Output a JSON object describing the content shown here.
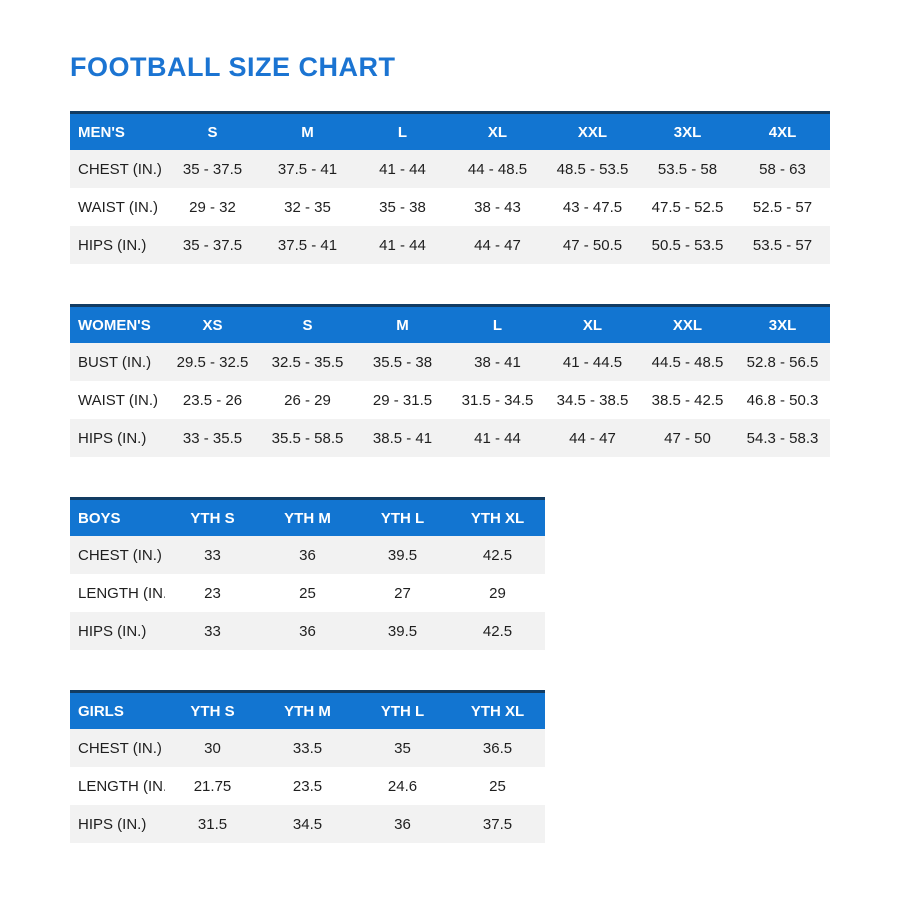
{
  "page": {
    "title": "FOOTBALL SIZE CHART"
  },
  "colors": {
    "title_blue": "#1b74d2",
    "accent_blue": "#1275d1",
    "header_top_border": "#123c63",
    "row_alt": "#f2f2f2",
    "text": "#1f1f1f"
  },
  "tables": [
    {
      "name": "mens",
      "size": "large",
      "header": [
        "MEN'S",
        "S",
        "M",
        "L",
        "XL",
        "XXL",
        "3XL",
        "4XL"
      ],
      "rows": [
        [
          "CHEST (IN.)",
          "35 - 37.5",
          "37.5 - 41",
          "41 - 44",
          "44 - 48.5",
          "48.5 - 53.5",
          "53.5 - 58",
          "58 - 63"
        ],
        [
          "WAIST (IN.)",
          "29 - 32",
          "32 - 35",
          "35 - 38",
          "38 - 43",
          "43 - 47.5",
          "47.5 - 52.5",
          "52.5 - 57"
        ],
        [
          "HIPS (IN.)",
          "35 - 37.5",
          "37.5 - 41",
          "41 - 44",
          "44 - 47",
          "47 - 50.5",
          "50.5 - 53.5",
          "53.5 - 57"
        ]
      ]
    },
    {
      "name": "womens",
      "size": "large",
      "header": [
        "WOMEN'S",
        "XS",
        "S",
        "M",
        "L",
        "XL",
        "XXL",
        "3XL"
      ],
      "rows": [
        [
          "BUST (IN.)",
          "29.5 - 32.5",
          "32.5 - 35.5",
          "35.5 - 38",
          "38 - 41",
          "41 - 44.5",
          "44.5 - 48.5",
          "52.8 - 56.5"
        ],
        [
          "WAIST (IN.)",
          "23.5 - 26",
          "26 - 29",
          "29 - 31.5",
          "31.5 - 34.5",
          "34.5 - 38.5",
          "38.5 - 42.5",
          "46.8 - 50.3"
        ],
        [
          "HIPS (IN.)",
          "33 - 35.5",
          "35.5 - 58.5",
          "38.5 - 41",
          "41 - 44",
          "44 - 47",
          "47 - 50",
          "54.3 - 58.3"
        ]
      ]
    },
    {
      "name": "boys",
      "size": "small",
      "header": [
        "BOYS",
        "YTH S",
        "YTH M",
        "YTH L",
        "YTH XL"
      ],
      "rows": [
        [
          "CHEST (IN.)",
          "33",
          "36",
          "39.5",
          "42.5"
        ],
        [
          "LENGTH (IN.)",
          "23",
          "25",
          "27",
          "29"
        ],
        [
          "HIPS (IN.)",
          "33",
          "36",
          "39.5",
          "42.5"
        ]
      ]
    },
    {
      "name": "girls",
      "size": "small",
      "header": [
        "GIRLS",
        "YTH S",
        "YTH M",
        "YTH L",
        "YTH XL"
      ],
      "rows": [
        [
          "CHEST (IN.)",
          "30",
          "33.5",
          "35",
          "36.5"
        ],
        [
          "LENGTH (IN.)",
          "21.75",
          "23.5",
          "24.6",
          "25"
        ],
        [
          "HIPS (IN.)",
          "31.5",
          "34.5",
          "36",
          "37.5"
        ]
      ]
    }
  ]
}
